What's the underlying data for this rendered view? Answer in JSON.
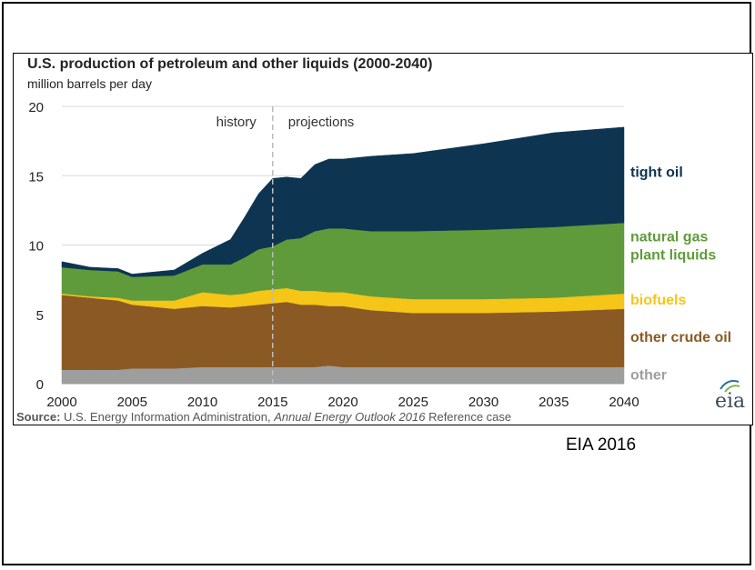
{
  "chart_data": {
    "type": "area",
    "stacked": true,
    "title": "U.S. production of petroleum and other liquids (2000-2040)",
    "subtitle": "million barrels per day",
    "ylim": [
      0,
      20
    ],
    "yticks": [
      0,
      5,
      10,
      15,
      20
    ],
    "xlim": [
      2000,
      2040
    ],
    "xticks": [
      2000,
      2005,
      2010,
      2015,
      2020,
      2025,
      2030,
      2035,
      2040
    ],
    "grid": true,
    "divider": {
      "x": 2015,
      "left_label": "history",
      "right_label": "projections"
    },
    "x": [
      2000,
      2002,
      2004,
      2005,
      2008,
      2010,
      2012,
      2013,
      2014,
      2015,
      2016,
      2017,
      2018,
      2019,
      2020,
      2022,
      2025,
      2030,
      2035,
      2040
    ],
    "series": [
      {
        "name": "other",
        "color": "#9e9e9e",
        "values": [
          1.0,
          1.0,
          1.0,
          1.1,
          1.1,
          1.2,
          1.2,
          1.2,
          1.2,
          1.2,
          1.2,
          1.2,
          1.2,
          1.3,
          1.2,
          1.2,
          1.2,
          1.2,
          1.2,
          1.2
        ]
      },
      {
        "name": "other crude oil",
        "color": "#8b5a24",
        "values": [
          5.4,
          5.2,
          5.0,
          4.6,
          4.3,
          4.4,
          4.3,
          4.4,
          4.5,
          4.6,
          4.7,
          4.5,
          4.5,
          4.3,
          4.4,
          4.1,
          3.9,
          3.9,
          4.0,
          4.2
        ]
      },
      {
        "name": "biofuels",
        "color": "#f5c518",
        "values": [
          0.1,
          0.1,
          0.2,
          0.3,
          0.6,
          1.0,
          0.9,
          0.9,
          1.0,
          1.0,
          1.0,
          1.0,
          1.0,
          1.0,
          1.0,
          1.0,
          1.0,
          1.0,
          1.0,
          1.1
        ]
      },
      {
        "name": "natural gas plant liquids",
        "color": "#5f9b3a",
        "values": [
          1.9,
          1.9,
          1.9,
          1.7,
          1.8,
          2.0,
          2.2,
          2.6,
          3.0,
          3.1,
          3.5,
          3.8,
          4.3,
          4.6,
          4.6,
          4.7,
          4.9,
          5.0,
          5.1,
          5.1
        ]
      },
      {
        "name": "tight oil",
        "color": "#0d3551",
        "values": [
          0.4,
          0.2,
          0.2,
          0.2,
          0.4,
          0.8,
          1.8,
          2.9,
          4.0,
          4.9,
          4.5,
          4.3,
          4.8,
          5.0,
          5.0,
          5.4,
          5.6,
          6.2,
          6.8,
          6.9
        ]
      }
    ],
    "legend_labels": [
      {
        "series": "tight oil",
        "lines": [
          "tight oil"
        ],
        "color": "#0d3551",
        "y": 15.3
      },
      {
        "series": "natural gas plant liquids",
        "lines": [
          "natural gas",
          "plant liquids"
        ],
        "color": "#5f9b3a",
        "y": 10.0
      },
      {
        "series": "biofuels",
        "lines": [
          "biofuels"
        ],
        "color": "#f5c518",
        "y": 6.1
      },
      {
        "series": "other crude oil",
        "lines": [
          "other crude oil"
        ],
        "color": "#8b5a24",
        "y": 3.4
      },
      {
        "series": "other",
        "lines": [
          "other"
        ],
        "color": "#9e9e9e",
        "y": 0.7
      }
    ]
  },
  "source": {
    "label": "Source:",
    "text_before": " U.S. Energy Information Administration, ",
    "italic": "Annual Energy Outlook 2016",
    "text_after": " Reference case"
  },
  "logo_text": "eia",
  "caption": "EIA 2016"
}
